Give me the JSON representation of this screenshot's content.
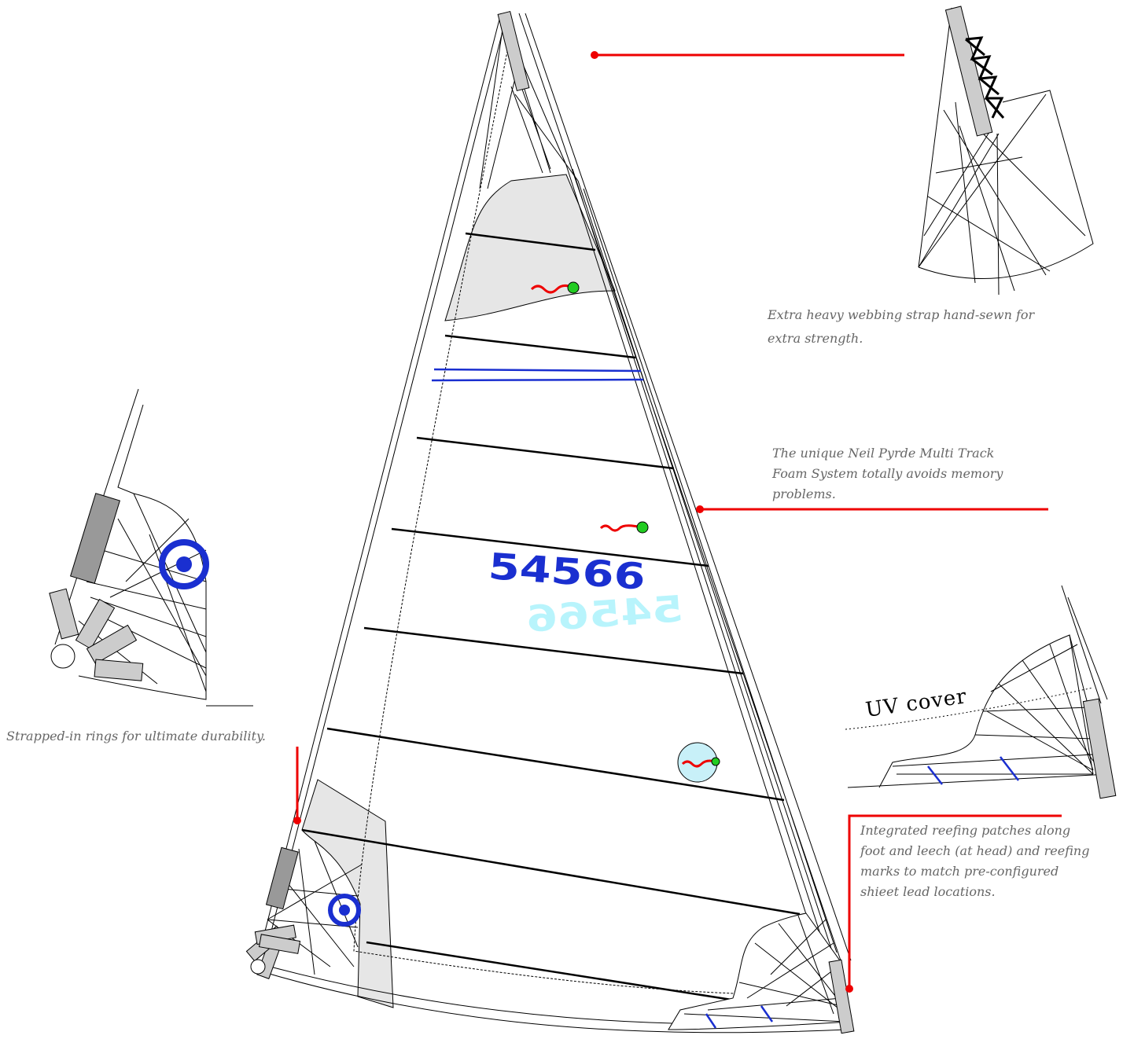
{
  "sail_number": "54566",
  "callouts": {
    "head": {
      "lines": [
        "Extra  heavy webbing strap hand-sewn for",
        "extra strength."
      ]
    },
    "foam": {
      "lines": [
        "The unique Neil Pyrde Multi Track",
        "Foam System totally avoids memory",
        "problems."
      ]
    },
    "rings": {
      "lines": [
        "Strapped-in rings for ultimate durability."
      ]
    },
    "uv": {
      "label": "UV cover"
    },
    "reefing": {
      "lines": [
        "Integrated reefing patches along",
        "foot and leech (at head) and reefing",
        "marks to match pre-configured",
        "shieet lead locations."
      ]
    }
  }
}
